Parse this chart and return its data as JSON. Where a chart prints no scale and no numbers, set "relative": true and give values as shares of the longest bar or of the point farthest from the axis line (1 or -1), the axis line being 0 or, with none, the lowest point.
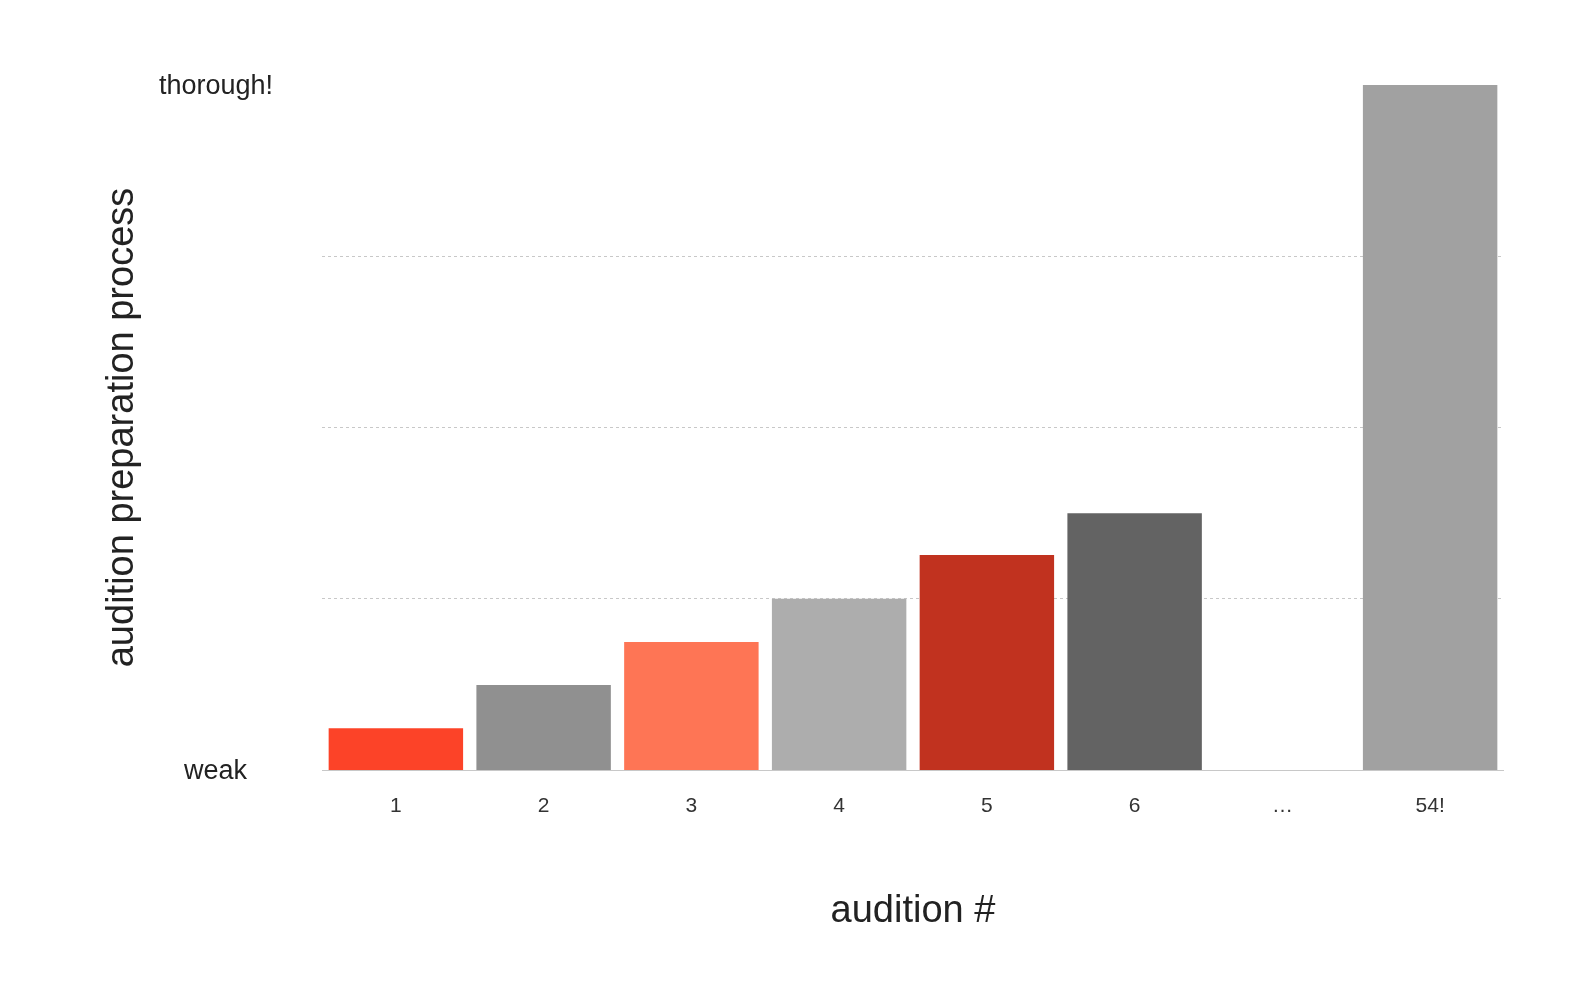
{
  "chart_data": {
    "type": "bar",
    "relative": true,
    "xlabel": "audition #",
    "ylabel": "audition preparation process",
    "categories": [
      "1",
      "2",
      "3",
      "4",
      "5",
      "6",
      "…",
      "54!"
    ],
    "values": [
      0.061,
      0.124,
      0.187,
      0.25,
      0.314,
      0.375,
      null,
      1
    ],
    "colors": [
      "#fc4328",
      "#909090",
      "#fe7555",
      "#adadad",
      "#c1321f",
      "#636363",
      "#a1a1a1",
      "#a1a1a1"
    ],
    "annotations": [
      "weak",
      "thorough!"
    ],
    "grid": "y",
    "legend": false
  }
}
